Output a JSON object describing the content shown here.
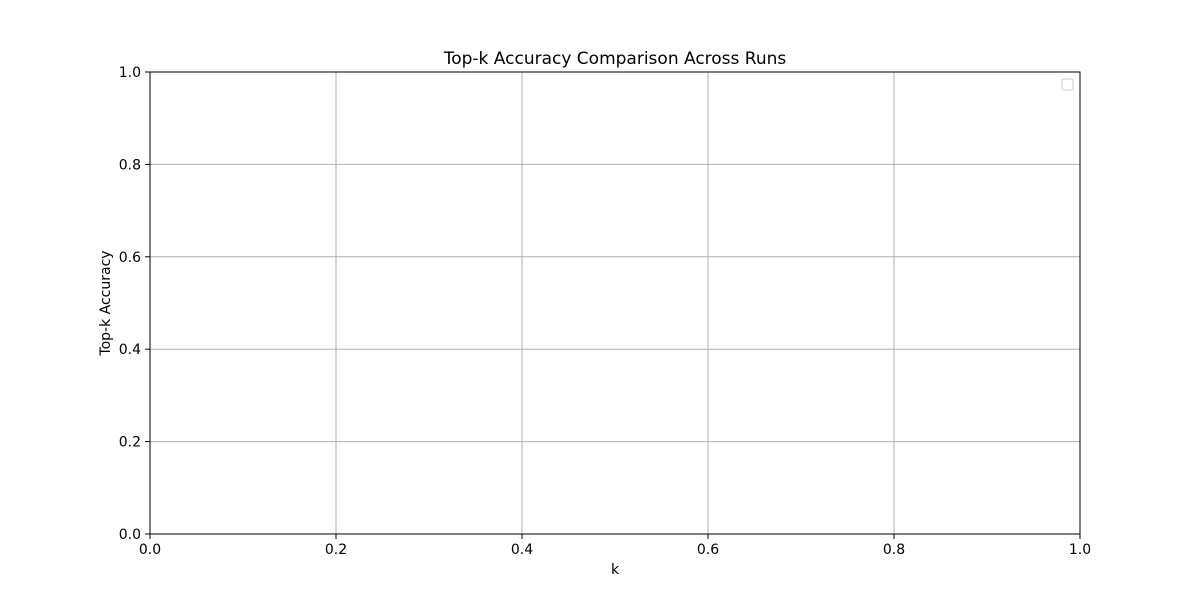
{
  "chart_data": {
    "type": "line",
    "title": "Top-k Accuracy Comparison Across Runs",
    "xlabel": "k",
    "ylabel": "Top-k Accuracy",
    "xlim": [
      0.0,
      1.0
    ],
    "ylim": [
      0.0,
      1.0
    ],
    "x_ticks": [
      "0.0",
      "0.2",
      "0.4",
      "0.6",
      "0.8",
      "1.0"
    ],
    "y_ticks": [
      "0.0",
      "0.2",
      "0.4",
      "0.6",
      "0.8",
      "1.0"
    ],
    "grid": true,
    "legend": {
      "position": "top-right",
      "entries": []
    },
    "series": [],
    "colors": {
      "grid": "#b0b0b0",
      "axes": "#000000",
      "legend_border": "#cccccc"
    }
  }
}
